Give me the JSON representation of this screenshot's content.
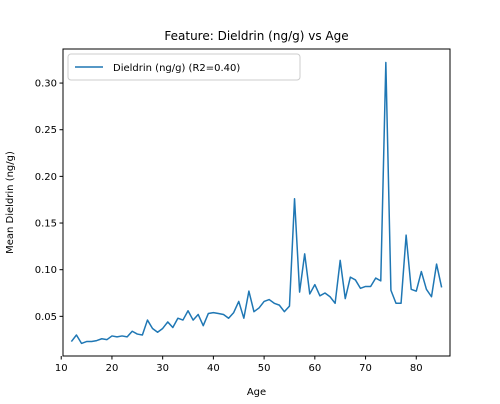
{
  "chart_data": {
    "type": "line",
    "title": "Feature: Dieldrin (ng/g) vs Age",
    "xlabel": "Age",
    "ylabel": "Mean Dieldrin (ng/g)",
    "xlim": [
      10.35,
      86.65
    ],
    "ylim": [
      0.0075,
      0.3365
    ],
    "xticks": [
      10,
      20,
      30,
      40,
      50,
      60,
      70,
      80
    ],
    "yticks": [
      0.05,
      0.1,
      0.15,
      0.2,
      0.25,
      0.3
    ],
    "ytick_labels": [
      "0.05",
      "0.10",
      "0.15",
      "0.20",
      "0.25",
      "0.30"
    ],
    "grid": false,
    "legend": "top-left",
    "series": [
      {
        "name": "Dieldrin (ng/g) (R2=0.40)",
        "color": "#1f77b4",
        "x": [
          12,
          13,
          14,
          15,
          16,
          17,
          18,
          19,
          20,
          21,
          22,
          23,
          24,
          25,
          26,
          27,
          28,
          29,
          30,
          31,
          32,
          33,
          34,
          35,
          36,
          37,
          38,
          39,
          40,
          41,
          42,
          43,
          44,
          45,
          46,
          47,
          48,
          49,
          50,
          51,
          52,
          53,
          54,
          55,
          56,
          57,
          58,
          59,
          60,
          61,
          62,
          63,
          64,
          65,
          66,
          67,
          68,
          69,
          70,
          71,
          72,
          73,
          74,
          75,
          76,
          77,
          78,
          79,
          80,
          81,
          82,
          83,
          84,
          85
        ],
        "y": [
          0.023,
          0.03,
          0.021,
          0.023,
          0.023,
          0.024,
          0.026,
          0.025,
          0.029,
          0.028,
          0.029,
          0.028,
          0.034,
          0.031,
          0.03,
          0.046,
          0.037,
          0.033,
          0.037,
          0.044,
          0.038,
          0.048,
          0.046,
          0.056,
          0.046,
          0.052,
          0.04,
          0.053,
          0.054,
          0.053,
          0.052,
          0.048,
          0.054,
          0.066,
          0.048,
          0.077,
          0.055,
          0.059,
          0.066,
          0.068,
          0.064,
          0.062,
          0.055,
          0.061,
          0.176,
          0.076,
          0.117,
          0.074,
          0.084,
          0.072,
          0.075,
          0.071,
          0.064,
          0.11,
          0.069,
          0.092,
          0.089,
          0.08,
          0.082,
          0.082,
          0.091,
          0.088,
          0.322,
          0.078,
          0.064,
          0.064,
          0.137,
          0.079,
          0.077,
          0.098,
          0.079,
          0.071,
          0.106,
          0.081
        ]
      }
    ]
  }
}
